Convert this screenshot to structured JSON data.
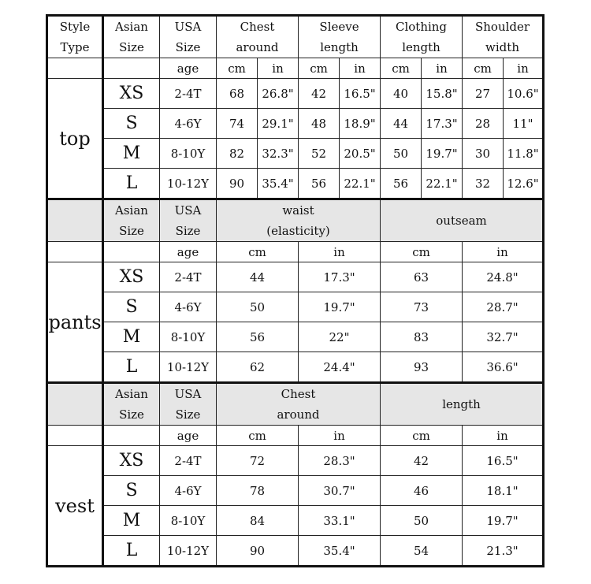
{
  "sections": [
    {
      "type": "top",
      "headers": [
        [
          "Style",
          "Type"
        ],
        [
          "Asian",
          "Size"
        ],
        [
          "USA",
          "Size"
        ],
        [
          "Chest",
          "around"
        ],
        [
          "Sleeve",
          "length"
        ],
        [
          "Clothing",
          "length"
        ],
        [
          "Shoulder",
          "width"
        ]
      ],
      "units": [
        "age",
        "cm",
        "in",
        "cm",
        "in",
        "cm",
        "in",
        "cm",
        "in"
      ],
      "rows": [
        [
          "XS",
          "2-4T",
          "68",
          "26.8\"",
          "42",
          "16.5\"",
          "40",
          "15.8\"",
          "27",
          "10.6\""
        ],
        [
          "S",
          "4-6Y",
          "74",
          "29.1\"",
          "48",
          "18.9\"",
          "44",
          "17.3\"",
          "28",
          "11\""
        ],
        [
          "M",
          "8-10Y",
          "82",
          "32.3\"",
          "52",
          "20.5\"",
          "50",
          "19.7\"",
          "30",
          "11.8\""
        ],
        [
          "L",
          "10-12Y",
          "90",
          "35.4\"",
          "56",
          "22.1\"",
          "56",
          "22.1\"",
          "32",
          "12.6\""
        ]
      ]
    },
    {
      "type": "pants",
      "headers": [
        [
          "Asian",
          "Size"
        ],
        [
          "USA",
          "Size"
        ],
        [
          "waist",
          "(elasticity)"
        ],
        [
          "outseam"
        ]
      ],
      "units": [
        "age",
        "cm",
        "in",
        "cm",
        "in"
      ],
      "rows": [
        [
          "XS",
          "2-4T",
          "44",
          "17.3\"",
          "63",
          "24.8\""
        ],
        [
          "S",
          "4-6Y",
          "50",
          "19.7\"",
          "73",
          "28.7\""
        ],
        [
          "M",
          "8-10Y",
          "56",
          "22\"",
          "83",
          "32.7\""
        ],
        [
          "L",
          "10-12Y",
          "62",
          "24.4\"",
          "93",
          "36.6\""
        ]
      ]
    },
    {
      "type": "vest",
      "headers": [
        [
          "Asian",
          "Size"
        ],
        [
          "USA",
          "Size"
        ],
        [
          "Chest",
          "around"
        ],
        [
          "length"
        ]
      ],
      "units": [
        "age",
        "cm",
        "in",
        "cm",
        "in"
      ],
      "rows": [
        [
          "XS",
          "2-4T",
          "72",
          "28.3\"",
          "42",
          "16.5\""
        ],
        [
          "S",
          "4-6Y",
          "78",
          "30.7\"",
          "46",
          "18.1\""
        ],
        [
          "M",
          "8-10Y",
          "84",
          "33.1\"",
          "50",
          "19.7\""
        ],
        [
          "L",
          "10-12Y",
          "90",
          "35.4\"",
          "54",
          "21.3\""
        ]
      ]
    }
  ]
}
